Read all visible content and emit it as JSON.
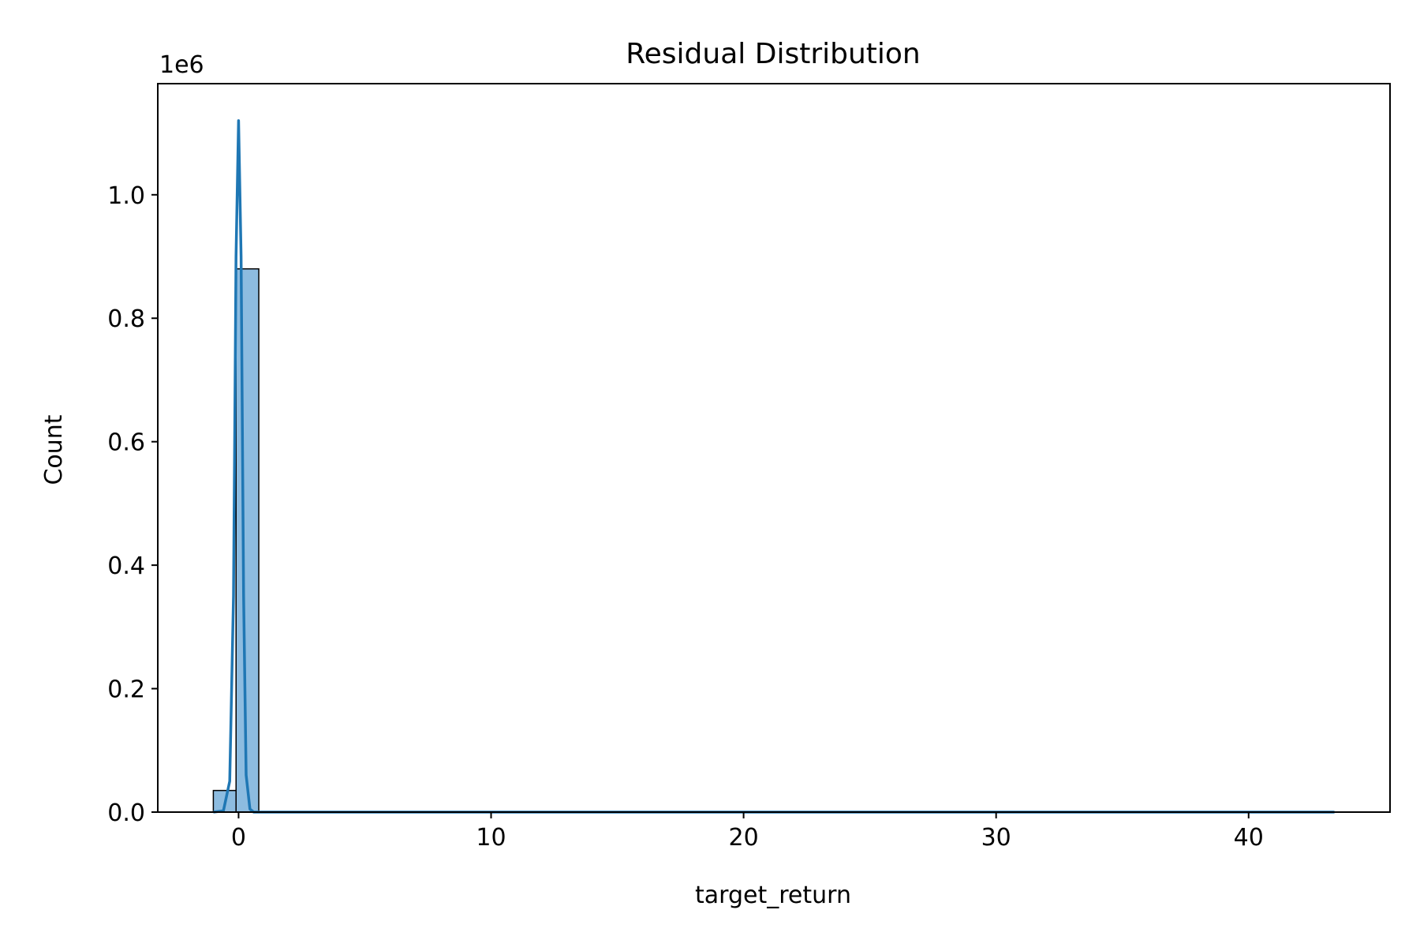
{
  "chart_data": {
    "type": "bar",
    "title": "Residual Distribution",
    "xlabel": "target_return",
    "ylabel": "Count",
    "y_scale_label": "1e6",
    "xlim": [
      -3.2,
      45.6
    ],
    "ylim": [
      0,
      1.18
    ],
    "x_ticks": [
      0,
      10,
      20,
      30,
      40
    ],
    "x_tick_labels": [
      "0",
      "10",
      "20",
      "30",
      "40"
    ],
    "y_ticks": [
      0.0,
      0.2,
      0.4,
      0.6,
      0.8,
      1.0
    ],
    "y_tick_labels": [
      "0.0",
      "0.2",
      "0.4",
      "0.6",
      "0.8",
      "1.0"
    ],
    "grid": false,
    "bars": [
      {
        "x0": -1.0,
        "x1": -0.1,
        "value": 0.035
      },
      {
        "x0": -0.1,
        "x1": 0.8,
        "value": 0.88
      }
    ],
    "series": [
      {
        "type": "line",
        "x": [
          -1.0,
          -0.6,
          -0.35,
          -0.2,
          -0.1,
          0.0,
          0.1,
          0.2,
          0.3,
          0.45,
          0.6,
          1.0,
          5.0,
          10.0,
          20.0,
          30.0,
          40.0,
          43.4
        ],
        "values": [
          0.0,
          0.002,
          0.05,
          0.35,
          0.9,
          1.12,
          0.9,
          0.35,
          0.06,
          0.005,
          0.0,
          0.0,
          0.0,
          0.0,
          0.0,
          0.0,
          0.0,
          0.0
        ]
      }
    ],
    "colors": {
      "bar_fill": "#8dbce0",
      "bar_edge": "#000000",
      "line": "#1f77b4",
      "axes": "#000000"
    }
  }
}
